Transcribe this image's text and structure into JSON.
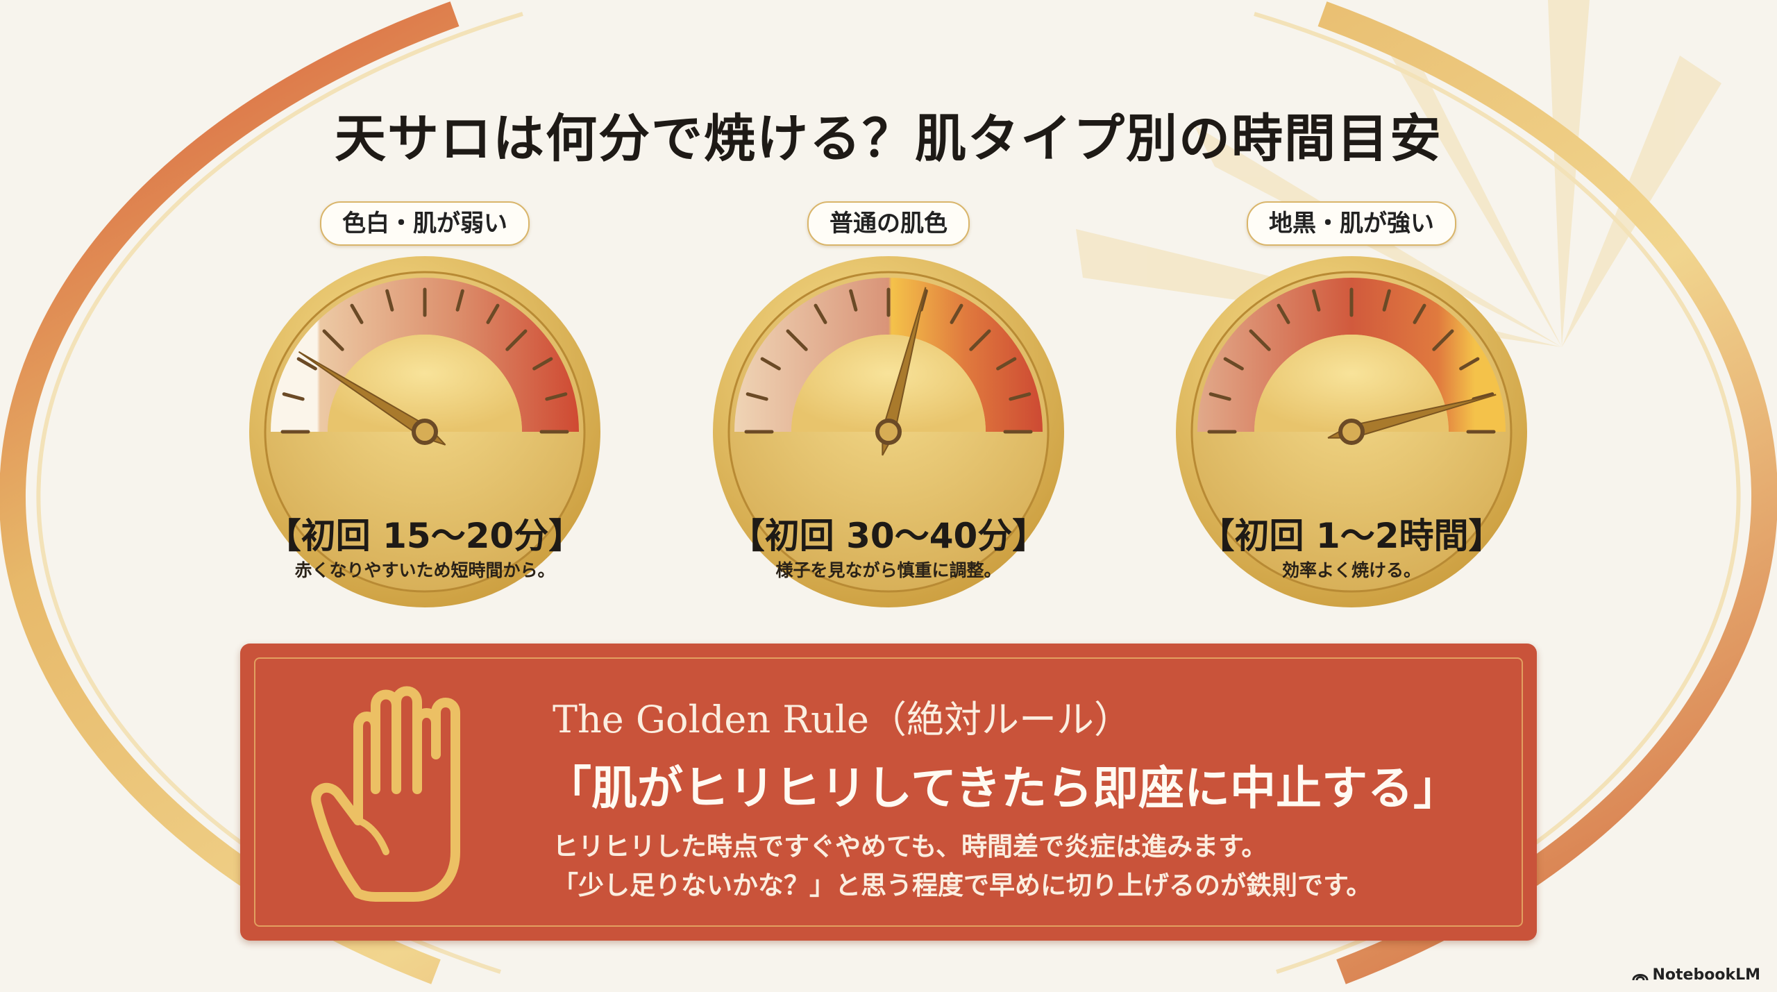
{
  "title": "天サロは何分で焼ける？肌タイプ別の時間目安",
  "gauges": [
    {
      "label": "色白・肌が弱い",
      "time": "【初回 15〜20分】",
      "note": "赤くなりやすいため短時間から。",
      "needle_level": 0.18,
      "band": [
        [
          "0",
          "#fbf5ea"
        ],
        [
          "0.15",
          "#fbf5ea"
        ],
        [
          "0.16",
          "#ecc9a4"
        ],
        [
          "0.6",
          "#dc8f6c"
        ],
        [
          "1",
          "#cf4a32"
        ]
      ]
    },
    {
      "label": "普通の肌色",
      "time": "【初回 30〜40分】",
      "note": "様子を見ながら慎重に調整。",
      "needle_level": 0.58,
      "band": [
        [
          "0",
          "#efd4b5"
        ],
        [
          "0.5",
          "#d99478"
        ],
        [
          "0.51",
          "#f4c24a"
        ],
        [
          "0.75",
          "#e07a3e"
        ],
        [
          "1",
          "#cd4a33"
        ]
      ]
    },
    {
      "label": "地黒・肌が強い",
      "time": "【初回 1〜2時間】",
      "note": "効率よく焼ける。",
      "needle_level": 0.92,
      "band": [
        [
          "0",
          "#e1a98a"
        ],
        [
          "0.5",
          "#d15a3d"
        ],
        [
          "0.78",
          "#e07a3e"
        ],
        [
          "0.9",
          "#f4c24a"
        ],
        [
          "1",
          "#f4c24a"
        ]
      ]
    }
  ],
  "rule": {
    "heading": "The Golden Rule（絶対ルール）",
    "quote": "「肌がヒリヒリしてきたら即座に中止する」",
    "body": [
      "ヒリヒリした時点ですぐやめても、時間差で炎症は進みます。",
      "「少し足りないかな？」と思う程度で早めに切り上げるのが鉄則です。"
    ],
    "icon": "hand-stop-icon"
  },
  "brand": "NotebookLM",
  "colors": {
    "background": "#f7f4ed",
    "accent_red": "#c9533a",
    "gold": "#d9b56a"
  }
}
